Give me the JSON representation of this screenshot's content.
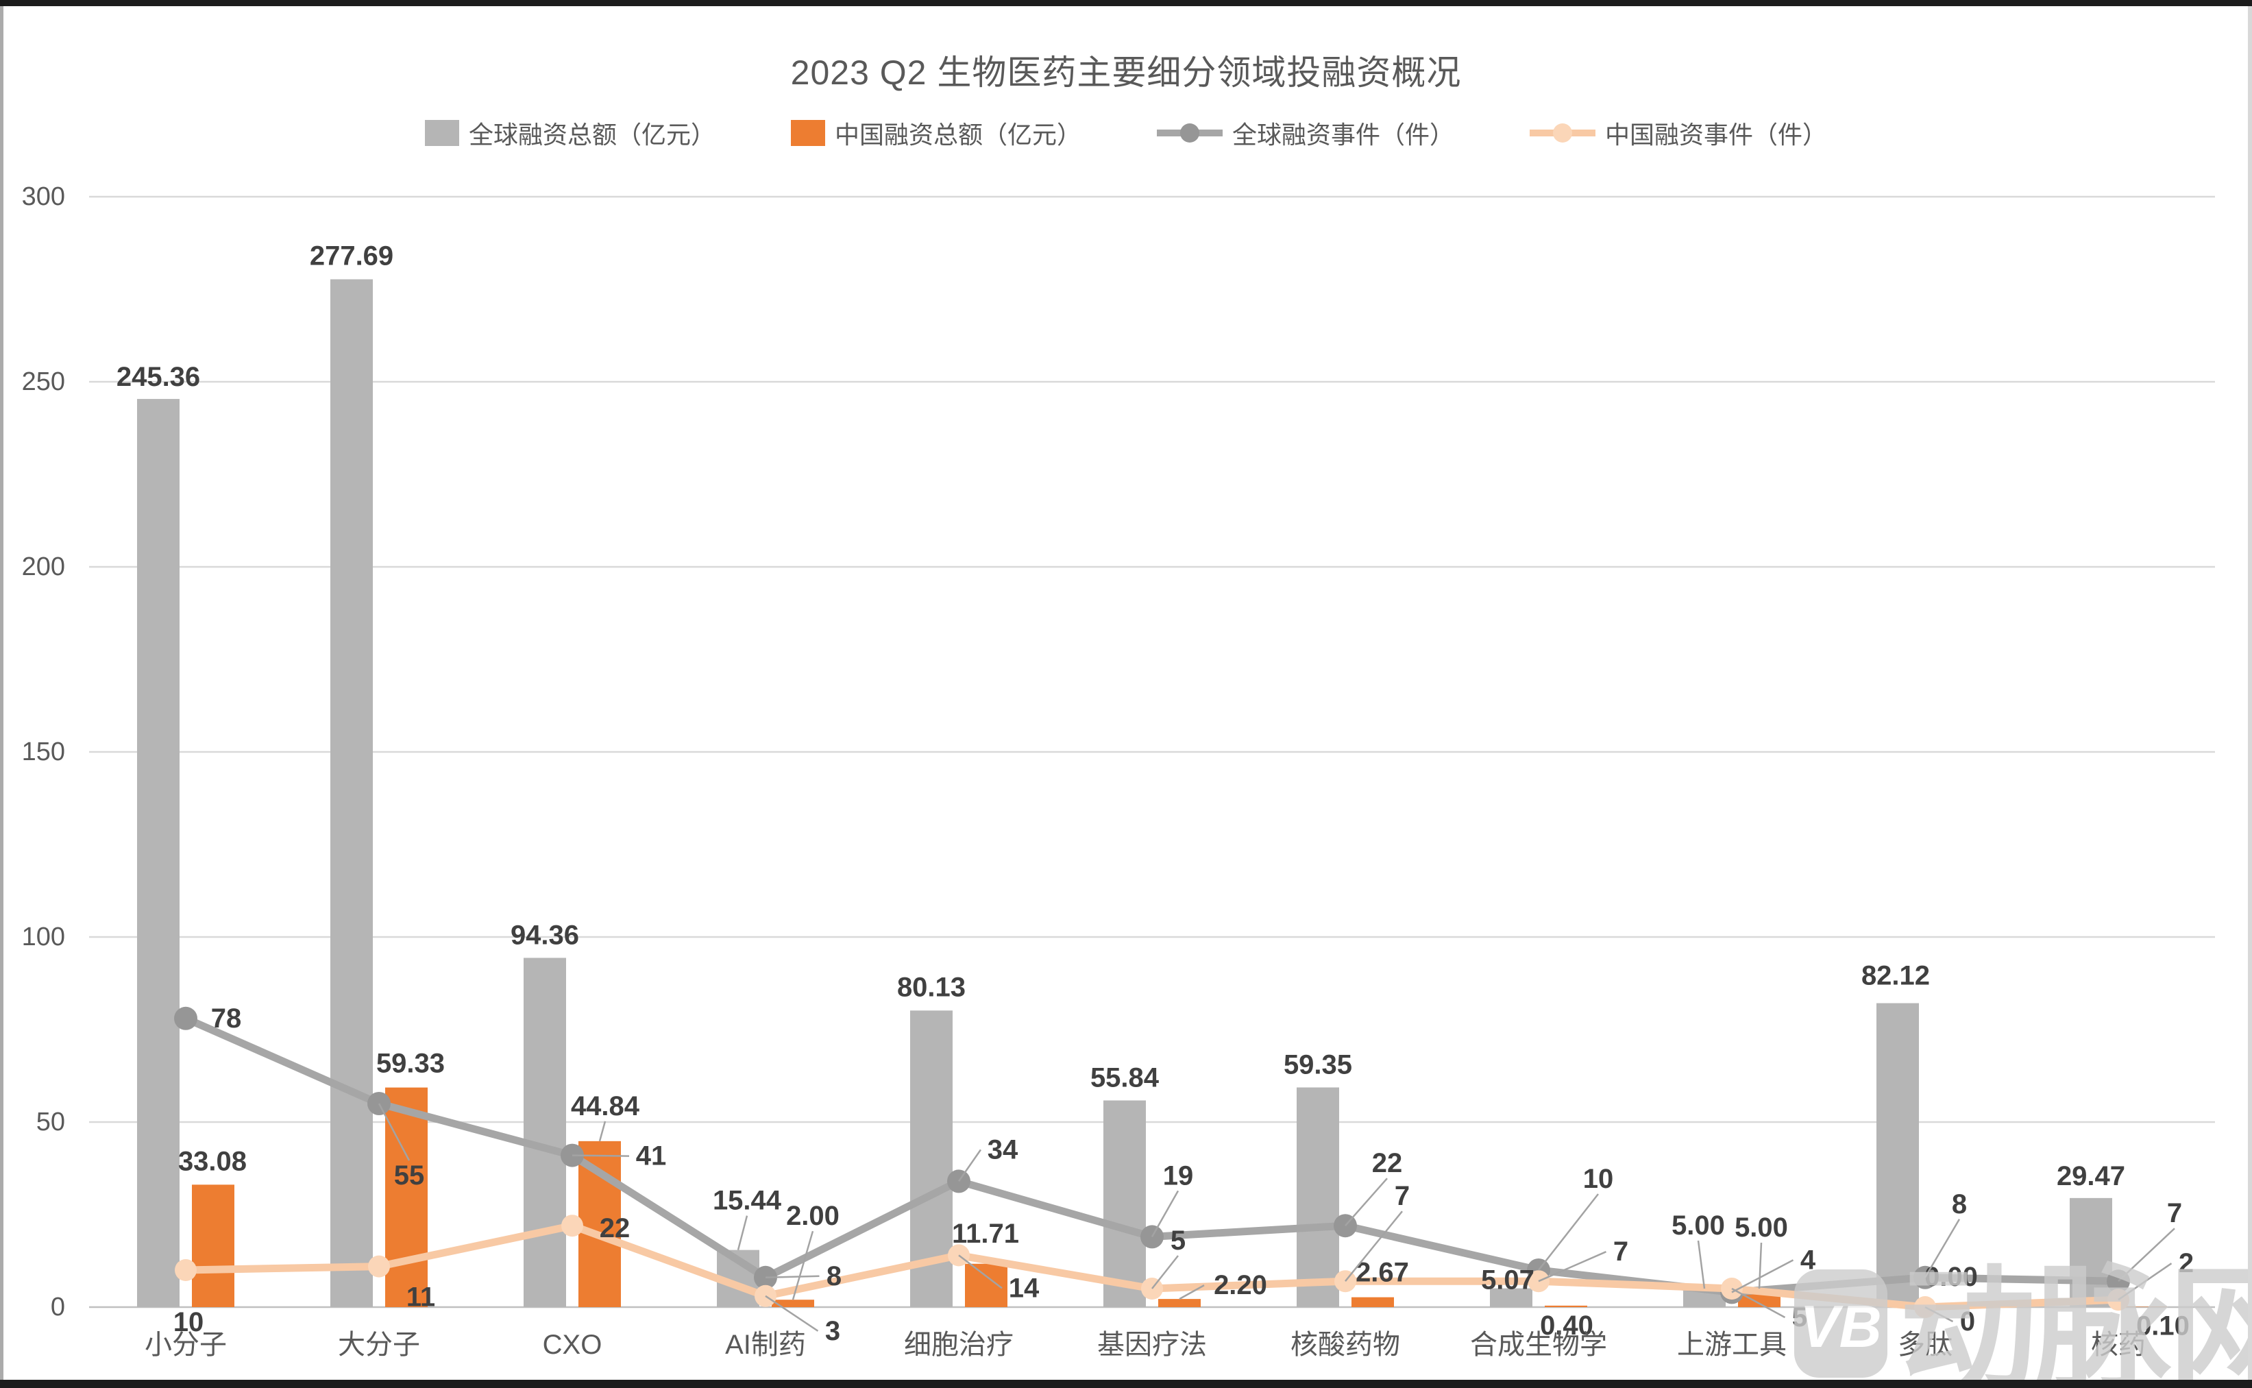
{
  "chart_data": {
    "type": "combo-bar-line",
    "title": "2023 Q2 生物医药主要细分领域投融资概况",
    "categories": [
      "小分子",
      "大分子",
      "CXO",
      "AI制药",
      "细胞治疗",
      "基因疗法",
      "核酸药物",
      "合成生物学",
      "上游工具",
      "多肽",
      "核药"
    ],
    "axis": {
      "ymin": 0,
      "ymax": 300,
      "ystep": 50,
      "yticks": [
        0,
        50,
        100,
        150,
        200,
        250,
        300
      ],
      "grid": true,
      "legend_position": "top"
    },
    "colors": {
      "global_bar": "#b5b5b5",
      "china_bar": "#ed7d31",
      "global_line": "#a6a6a6",
      "global_marker": "#969696",
      "china_line": "#f8c9a4",
      "china_marker": "#fbd6b8",
      "gridline": "#d9d9d9",
      "axis_line": "#c0c0c0",
      "leader": "#a3a3a3",
      "label_text": "#404040",
      "tick_text": "#595959",
      "watermark": "#cccccc"
    },
    "series": [
      {
        "name": "全球融资总额（亿元）",
        "type": "bar",
        "role": "global_bar",
        "values": [
          245.36,
          277.69,
          94.36,
          15.44,
          80.13,
          55.84,
          59.35,
          5.07,
          5.0,
          82.12,
          29.47
        ],
        "labels": [
          {
            "text": "245.36",
            "dx": 0,
            "dy": -32,
            "leader": false
          },
          {
            "text": "277.69",
            "dx": 0,
            "dy": -34,
            "leader": false
          },
          {
            "text": "94.36",
            "dx": 0,
            "dy": -33,
            "leader": false
          },
          {
            "text": "15.44",
            "dx": 13,
            "dy": -72,
            "leader": true
          },
          {
            "text": "80.13",
            "dx": 0,
            "dy": -34,
            "leader": false
          },
          {
            "text": "55.84",
            "dx": 0,
            "dy": -33,
            "leader": false
          },
          {
            "text": "59.35",
            "dx": 0,
            "dy": -33,
            "leader": false
          },
          {
            "text": "5.07",
            "dx": -5,
            "dy": -12,
            "leader": false
          },
          {
            "text": "5.00",
            "dx": -9,
            "dy": -92,
            "leader": true
          },
          {
            "text": "82.12",
            "dx": -3,
            "dy": -40,
            "leader": false
          },
          {
            "text": "29.47",
            "dx": 0,
            "dy": -32,
            "leader": false
          }
        ]
      },
      {
        "name": "中国融资总额（亿元）",
        "type": "bar",
        "role": "china_bar",
        "values": [
          33.08,
          59.33,
          44.84,
          2.0,
          11.71,
          2.2,
          2.67,
          0.4,
          5.0,
          0.0,
          0.1
        ],
        "labels": [
          {
            "text": "33.08",
            "dx": -1,
            "dy": -34,
            "leader": false
          },
          {
            "text": "59.33",
            "dx": 6,
            "dy": -35,
            "leader": false
          },
          {
            "text": "44.84",
            "dx": 8,
            "dy": -51,
            "leader": true
          },
          {
            "text": "2.00",
            "dx": 29,
            "dy": -122,
            "leader": true
          },
          {
            "text": "11.71",
            "dx": -1,
            "dy": -44,
            "leader": false
          },
          {
            "text": "2.20",
            "dx": 89,
            "dy": -20,
            "leader": true
          },
          {
            "text": "2.67",
            "dx": 14,
            "dy": -36,
            "leader": false
          },
          {
            "text": "0.40",
            "dx": 1,
            "dy": 29,
            "leader": false
          },
          {
            "text": "5.00",
            "dx": 3,
            "dy": -89,
            "leader": true
          },
          {
            "text": "0.00",
            "dx": -2,
            "dy": -44,
            "leader": false
          },
          {
            "text": "0.10",
            "dx": 25,
            "dy": 28,
            "leader": false
          }
        ]
      },
      {
        "name": "全球融资事件（件）",
        "type": "line",
        "role": "global_line",
        "values": [
          78,
          55,
          41,
          8,
          34,
          19,
          22,
          10,
          4,
          8,
          7
        ],
        "labels": [
          {
            "text": "78",
            "dx": 59,
            "dy": 0,
            "leader": false
          },
          {
            "text": "55",
            "dx": 44,
            "dy": 105,
            "leader": true
          },
          {
            "text": "41",
            "dx": 115,
            "dy": 1,
            "leader": true
          },
          {
            "text": "8",
            "dx": 100,
            "dy": -2,
            "leader": true
          },
          {
            "text": "34",
            "dx": 64,
            "dy": -46,
            "leader": true
          },
          {
            "text": "19",
            "dx": 38,
            "dy": -89,
            "leader": true
          },
          {
            "text": "22",
            "dx": 61,
            "dy": -91,
            "leader": true
          },
          {
            "text": "10",
            "dx": 87,
            "dy": -133,
            "leader": true
          },
          {
            "text": "4",
            "dx": 111,
            "dy": -47,
            "leader": true
          },
          {
            "text": "8",
            "dx": 50,
            "dy": -107,
            "leader": true
          },
          {
            "text": "7",
            "dx": 82,
            "dy": -99,
            "leader": true
          }
        ]
      },
      {
        "name": "中国融资事件（件）",
        "type": "line",
        "role": "china_line",
        "values": [
          10,
          11,
          22,
          3,
          14,
          5,
          7,
          7,
          5,
          0,
          2
        ],
        "labels": [
          {
            "text": "10",
            "dx": 4,
            "dy": 76,
            "leader": false
          },
          {
            "text": "11",
            "dx": 61,
            "dy": 45,
            "leader": false
          },
          {
            "text": "22",
            "dx": 62,
            "dy": 4,
            "leader": false
          },
          {
            "text": "3",
            "dx": 98,
            "dy": 51,
            "leader": true
          },
          {
            "text": "14",
            "dx": 95,
            "dy": 48,
            "leader": true
          },
          {
            "text": "5",
            "dx": 38,
            "dy": -70,
            "leader": true
          },
          {
            "text": "7",
            "dx": 83,
            "dy": -124,
            "leader": true
          },
          {
            "text": "7",
            "dx": 120,
            "dy": -43,
            "leader": true
          },
          {
            "text": "5",
            "dx": 99,
            "dy": 42,
            "leader": true
          },
          {
            "text": "0",
            "dx": 62,
            "dy": 21,
            "leader": true
          },
          {
            "text": "2",
            "dx": 99,
            "dy": -53,
            "leader": true
          }
        ]
      }
    ]
  },
  "watermark": {
    "logo": "VB",
    "text": "动脉网"
  }
}
